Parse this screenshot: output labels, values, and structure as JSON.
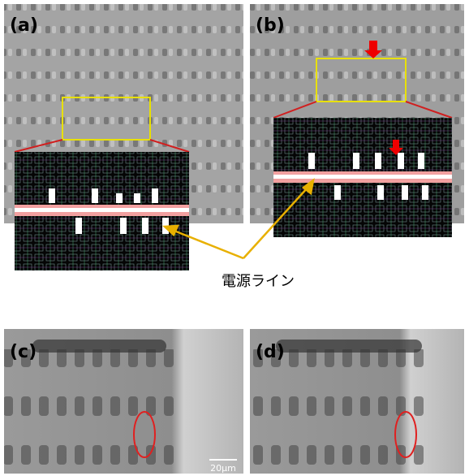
{
  "panels": [
    {
      "label": "(a)"
    },
    {
      "label": "(b)"
    },
    {
      "label": "(c)"
    },
    {
      "label": "(d)"
    }
  ],
  "annotation": "電源ライン",
  "scale_bar": "20μm"
}
